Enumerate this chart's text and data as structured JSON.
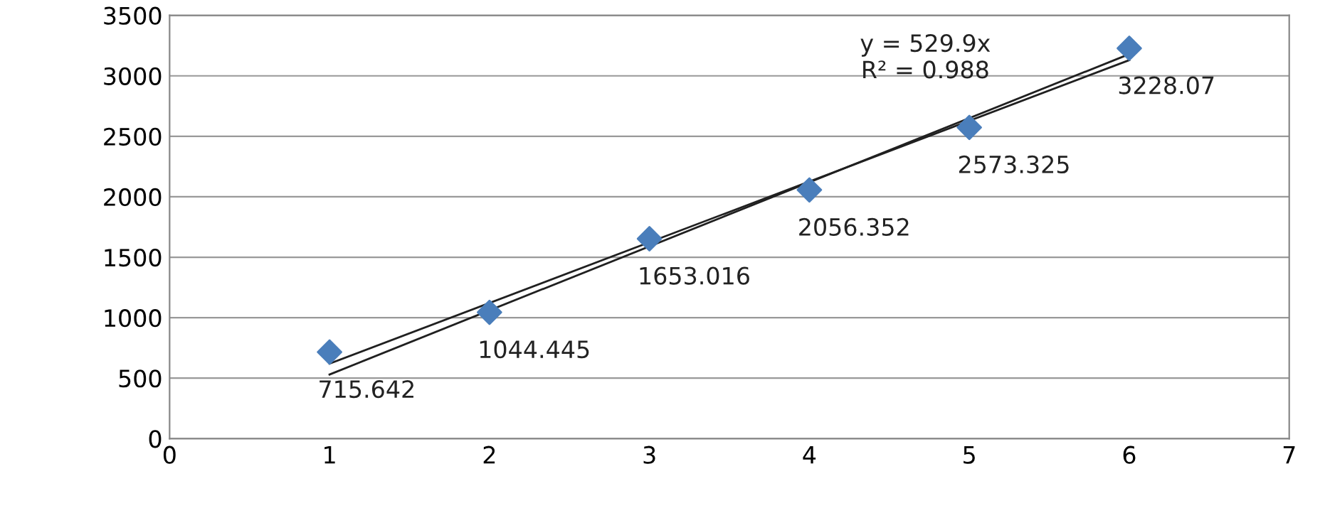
{
  "chart_data": {
    "type": "scatter",
    "xlim": [
      0,
      7
    ],
    "xticks": [
      0,
      1,
      2,
      3,
      4,
      5,
      6,
      7
    ],
    "ylim": [
      0,
      3500
    ],
    "yticks": [
      0,
      500,
      1000,
      1500,
      2000,
      2500,
      3000,
      3500
    ],
    "grid": "y",
    "marker": "diamond",
    "series": [
      {
        "color": "#4a7ebb",
        "x": [
          1,
          2,
          3,
          4,
          5,
          6
        ],
        "values": [
          715.642,
          1044.445,
          1653.016,
          2056.352,
          2573.325,
          3228.07
        ],
        "value_labels": [
          "715.642",
          "1044.445",
          "1653.016",
          "2056.352",
          "2573.325",
          "3228.07"
        ]
      },
      {
        "type": "line",
        "marker": "none",
        "color": "#202020",
        "x": [
          1,
          6
        ],
        "values": [
          530,
          3180
        ]
      },
      {
        "type": "line",
        "marker": "none",
        "color": "#202020",
        "x": [
          1,
          6
        ],
        "values": [
          620,
          3130
        ]
      }
    ],
    "annotations": [
      "y = 529.9x\nR² = 0.988"
    ]
  }
}
